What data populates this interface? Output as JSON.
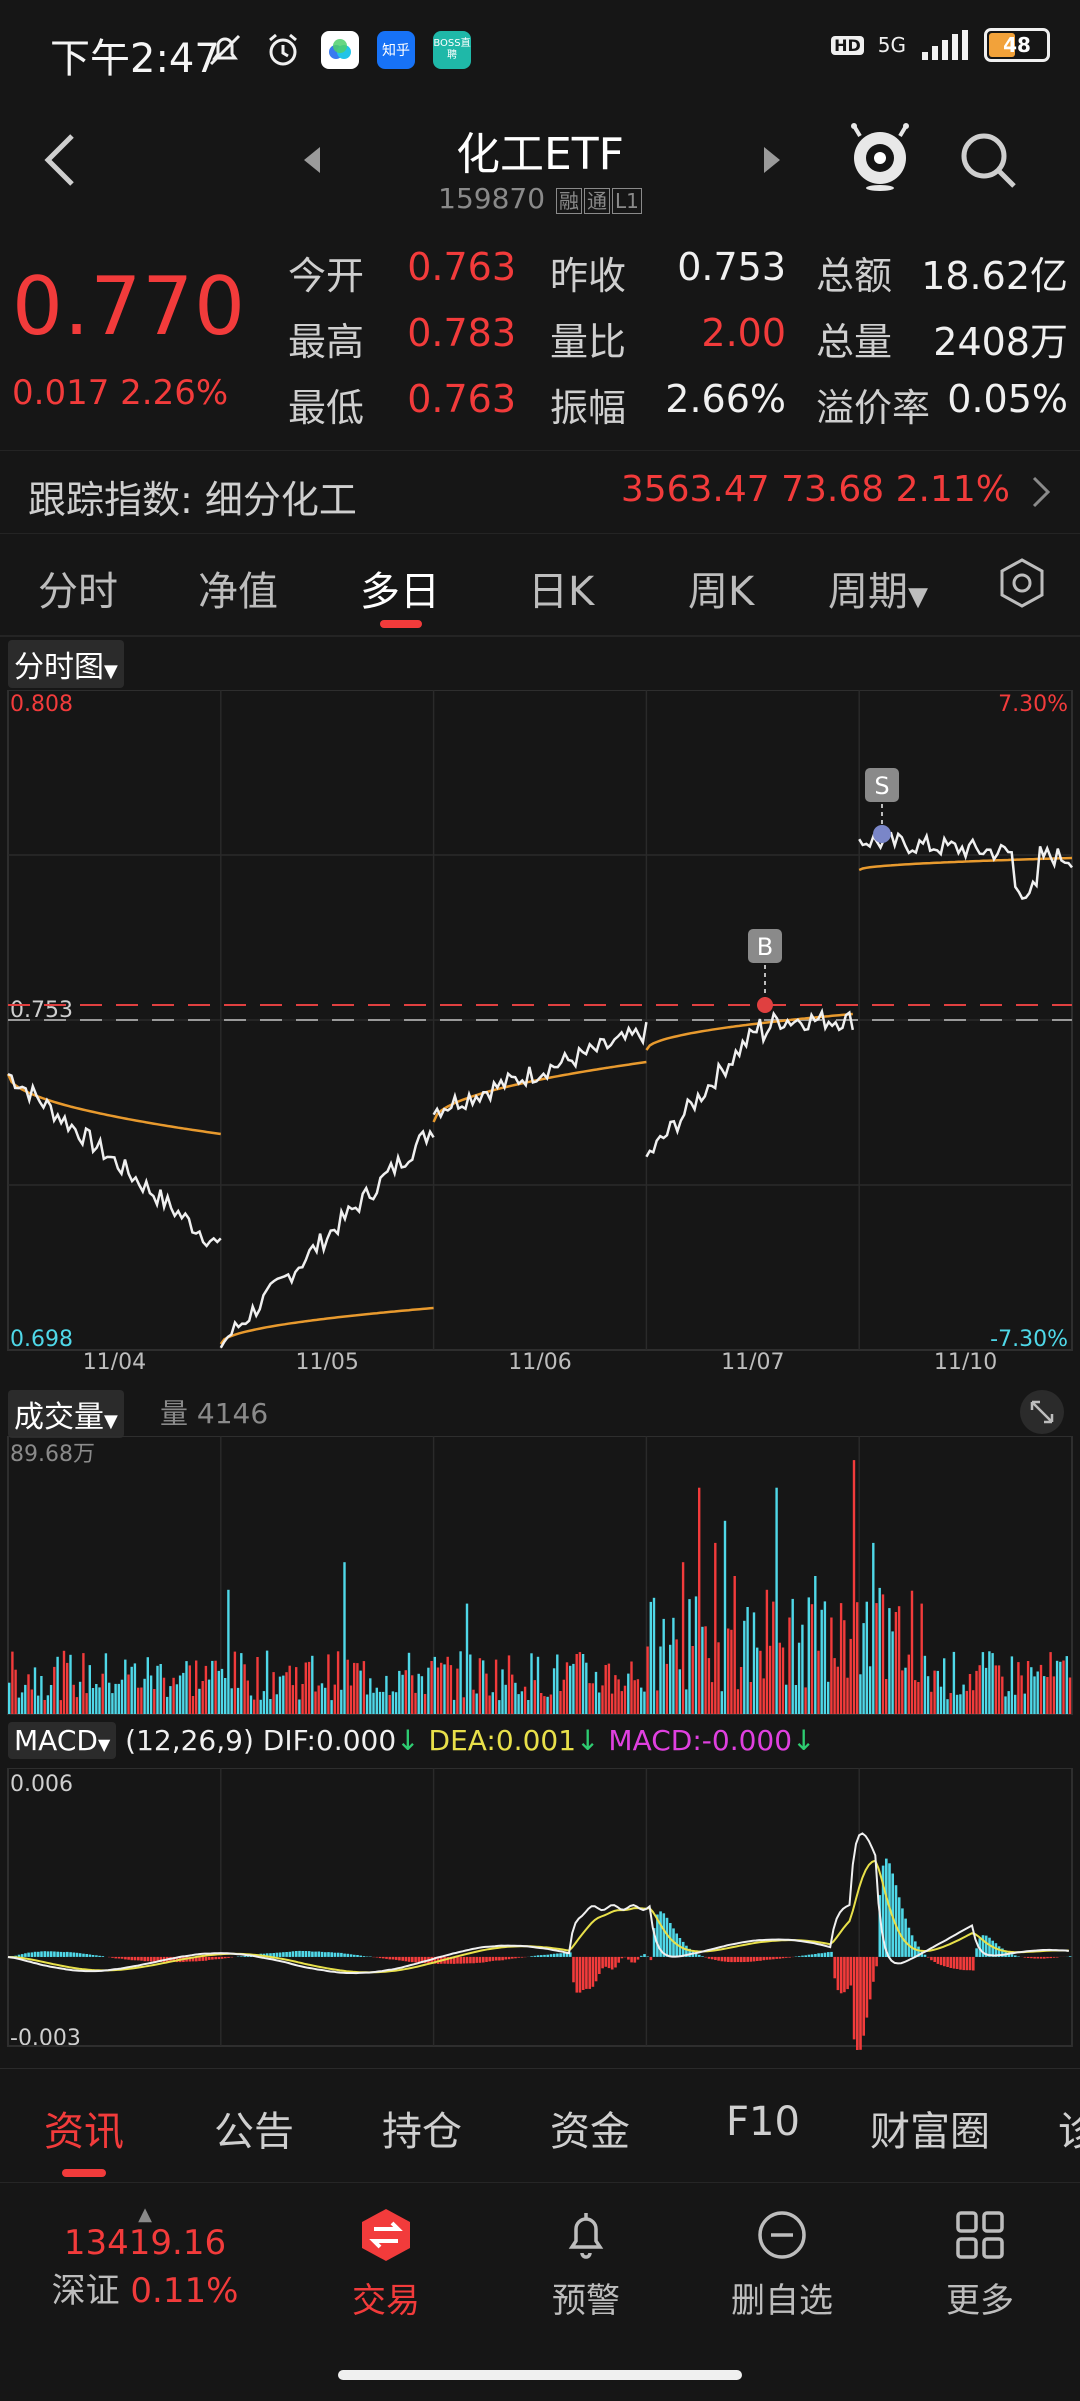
{
  "status_bar": {
    "time": "下午2:47",
    "apps": [
      "知乎",
      "BOSS直聘"
    ],
    "hd": "HD",
    "network": "5G",
    "battery": "48"
  },
  "header": {
    "title": "化工ETF",
    "code": "159870",
    "tags": [
      "融",
      "通",
      "L1"
    ]
  },
  "quote": {
    "price": "0.770",
    "change": "0.017",
    "change_pct": "2.26%",
    "rows": [
      [
        {
          "label": "今开",
          "value": "0.763",
          "color": "red"
        },
        {
          "label": "昨收",
          "value": "0.753",
          "color": "white"
        },
        {
          "label": "总额",
          "value": "18.62亿",
          "color": "white"
        }
      ],
      [
        {
          "label": "最高",
          "value": "0.783",
          "color": "red"
        },
        {
          "label": "量比",
          "value": "2.00",
          "color": "red"
        },
        {
          "label": "总量",
          "value": "2408万",
          "color": "white"
        }
      ],
      [
        {
          "label": "最低",
          "value": "0.763",
          "color": "red"
        },
        {
          "label": "振幅",
          "value": "2.66%",
          "color": "white"
        },
        {
          "label": "溢价率",
          "value": "0.05%",
          "color": "white"
        }
      ]
    ]
  },
  "tracking": {
    "label": "跟踪指数: 细分化工",
    "value": "3563.47  73.68  2.11%"
  },
  "tabs": [
    "分时",
    "净值",
    "多日",
    "日K",
    "周K",
    "周期"
  ],
  "active_tab": "多日",
  "price_chart": {
    "dropdown": "分时图",
    "y_max": "0.808",
    "y_min": "0.698",
    "pct_max": "7.30%",
    "pct_min": "-7.30%",
    "prev_close_label": "0.753",
    "dates": [
      "11/04",
      "11/05",
      "11/06",
      "11/07",
      "11/10"
    ],
    "buy_marker": "B",
    "sell_marker": "S"
  },
  "volume_chart": {
    "dropdown": "成交量",
    "volume_label": "量",
    "volume_value": "4146",
    "max_label": "89.68万"
  },
  "macd_chart": {
    "dropdown": "MACD",
    "params": "(12,26,9)",
    "dif_label": "DIF:0.000",
    "dea_label": "DEA:0.001",
    "macd_label": "MACD:-0.000",
    "arrow": "↓",
    "y_max": "0.006",
    "y_min": "-0.003",
    "colors": {
      "dif": "#f0f0f0",
      "dea": "#e8e04a",
      "macd": "#e040e0",
      "up": "#f23b3b",
      "down": "#4fd8e8"
    }
  },
  "bottom_tabs": [
    "资讯",
    "公告",
    "持仓",
    "资金",
    "F10",
    "财富圈",
    "诊"
  ],
  "active_bottom_tab": "资讯",
  "nav": {
    "index_value": "13419.16",
    "index_name": "深证",
    "index_pct": "0.11%",
    "items": [
      {
        "label": "交易",
        "icon": "trade-icon"
      },
      {
        "label": "预警",
        "icon": "bell-icon"
      },
      {
        "label": "删自选",
        "icon": "minus-circle-icon"
      },
      {
        "label": "更多",
        "icon": "grid-icon"
      }
    ]
  }
}
